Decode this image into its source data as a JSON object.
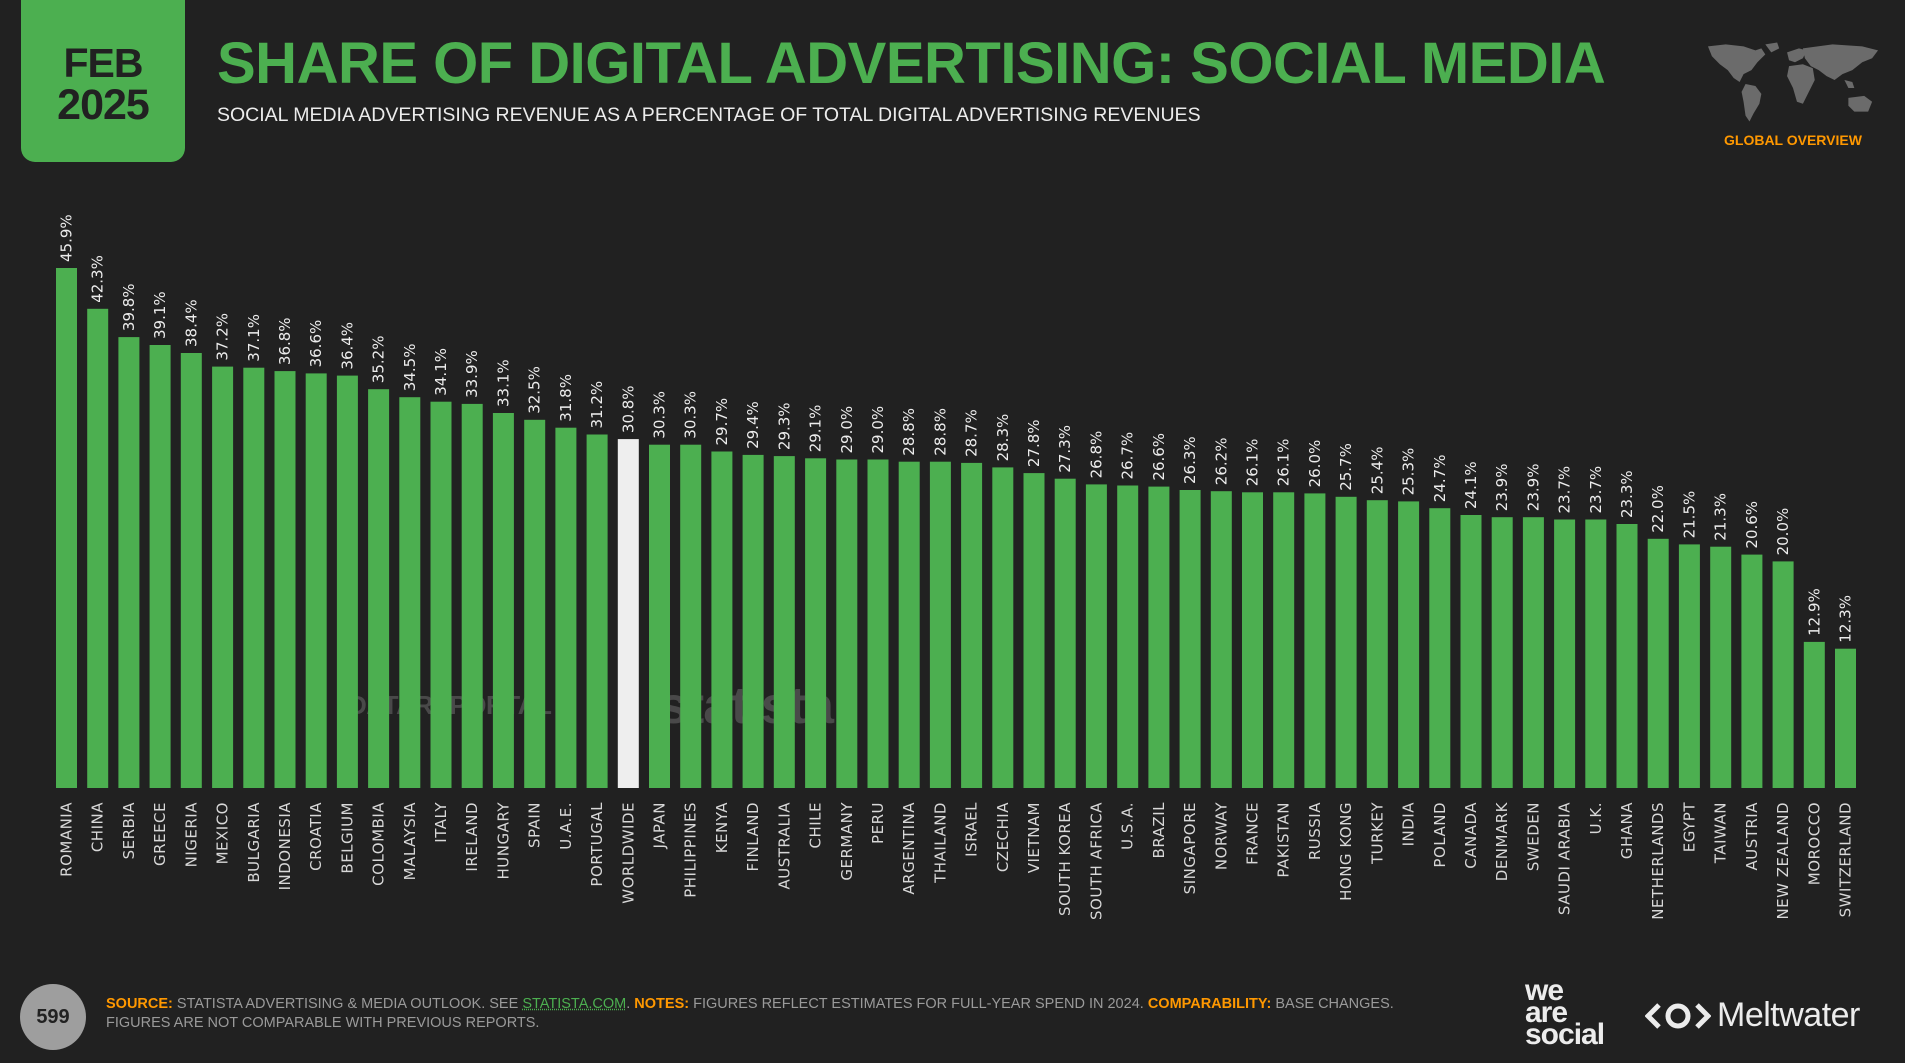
{
  "header": {
    "date_month": "FEB",
    "date_year": "2025",
    "title": "SHARE OF DIGITAL ADVERTISING: SOCIAL MEDIA",
    "subtitle": "SOCIAL MEDIA ADVERTISING REVENUE AS A PERCENTAGE OF TOTAL DIGITAL ADVERTISING REVENUES",
    "section_label": "GLOBAL OVERVIEW",
    "map_icon": "world-map-icon"
  },
  "colors": {
    "background": "#212121",
    "accent": "#4caf50",
    "highlight_bar": "#eeeeee",
    "label_orange": "#ff9800",
    "text": "#ececec"
  },
  "watermarks": {
    "datareportal": "DATAREPORTAL",
    "statista": "statista"
  },
  "footer": {
    "page_number": "599",
    "source_key": "SOURCE:",
    "source_text": " STATISTA ADVERTISING & MEDIA OUTLOOK. SEE ",
    "source_link": "STATISTA.COM",
    "source_end": ". ",
    "notes_key": "NOTES:",
    "notes_text": " FIGURES REFLECT ESTIMATES FOR FULL-YEAR SPEND IN 2024. ",
    "comparability_key": "COMPARABILITY:",
    "comparability_text": " BASE CHANGES. FIGURES ARE NOT COMPARABLE WITH PREVIOUS REPORTS.",
    "brand_1_lines": [
      "we",
      "are",
      "social"
    ],
    "brand_2": "Meltwater"
  },
  "chart_data": {
    "type": "bar",
    "title": "SHARE OF DIGITAL ADVERTISING: SOCIAL MEDIA",
    "subtitle": "SOCIAL MEDIA ADVERTISING REVENUE AS A PERCENTAGE OF TOTAL DIGITAL ADVERTISING REVENUES",
    "xlabel": "",
    "ylabel": "",
    "unit": "%",
    "ylim": [
      0,
      45.9
    ],
    "grid": false,
    "legend": "none",
    "highlight_category": "WORLDWIDE",
    "categories": [
      "ROMANIA",
      "CHINA",
      "SERBIA",
      "GREECE",
      "NIGERIA",
      "MEXICO",
      "BULGARIA",
      "INDONESIA",
      "CROATIA",
      "BELGIUM",
      "COLOMBIA",
      "MALAYSIA",
      "ITALY",
      "IRELAND",
      "HUNGARY",
      "SPAIN",
      "U.A.E.",
      "PORTUGAL",
      "WORLDWIDE",
      "JAPAN",
      "PHILIPPINES",
      "KENYA",
      "FINLAND",
      "AUSTRALIA",
      "CHILE",
      "GERMANY",
      "PERU",
      "ARGENTINA",
      "THAILAND",
      "ISRAEL",
      "CZECHIA",
      "VIETNAM",
      "SOUTH KOREA",
      "SOUTH AFRICA",
      "U.S.A.",
      "BRAZIL",
      "SINGAPORE",
      "NORWAY",
      "FRANCE",
      "PAKISTAN",
      "RUSSIA",
      "HONG KONG",
      "TURKEY",
      "INDIA",
      "POLAND",
      "CANADA",
      "DENMARK",
      "SWEDEN",
      "SAUDI ARABIA",
      "U.K.",
      "GHANA",
      "NETHERLANDS",
      "EGYPT",
      "TAIWAN",
      "AUSTRIA",
      "NEW ZEALAND",
      "MOROCCO",
      "SWITZERLAND"
    ],
    "values": [
      45.9,
      42.3,
      39.8,
      39.1,
      38.4,
      37.2,
      37.1,
      36.8,
      36.6,
      36.4,
      35.2,
      34.5,
      34.1,
      33.9,
      33.1,
      32.5,
      31.8,
      31.2,
      30.8,
      30.3,
      30.3,
      29.7,
      29.4,
      29.3,
      29.1,
      29.0,
      29.0,
      28.8,
      28.8,
      28.7,
      28.3,
      27.8,
      27.3,
      26.8,
      26.7,
      26.6,
      26.3,
      26.2,
      26.1,
      26.1,
      26.0,
      25.7,
      25.4,
      25.3,
      24.7,
      24.1,
      23.9,
      23.9,
      23.7,
      23.7,
      23.3,
      22.0,
      21.5,
      21.3,
      20.6,
      20.0,
      12.9,
      12.3
    ],
    "value_labels": [
      "45.9%",
      "42.3%",
      "39.8%",
      "39.1%",
      "38.4%",
      "37.2%",
      "37.1%",
      "36.8%",
      "36.6%",
      "36.4%",
      "35.2%",
      "34.5%",
      "34.1%",
      "33.9%",
      "33.1%",
      "32.5%",
      "31.8%",
      "31.2%",
      "30.8%",
      "30.3%",
      "30.3%",
      "29.7%",
      "29.4%",
      "29.3%",
      "29.1%",
      "29.0%",
      "29.0%",
      "28.8%",
      "28.8%",
      "28.7%",
      "28.3%",
      "27.8%",
      "27.3%",
      "26.8%",
      "26.7%",
      "26.6%",
      "26.3%",
      "26.2%",
      "26.1%",
      "26.1%",
      "26.0%",
      "25.7%",
      "25.4%",
      "25.3%",
      "24.7%",
      "24.1%",
      "23.9%",
      "23.9%",
      "23.7%",
      "23.7%",
      "23.3%",
      "22.0%",
      "21.5%",
      "21.3%",
      "20.6%",
      "20.0%",
      "12.9%",
      "12.3%"
    ]
  }
}
